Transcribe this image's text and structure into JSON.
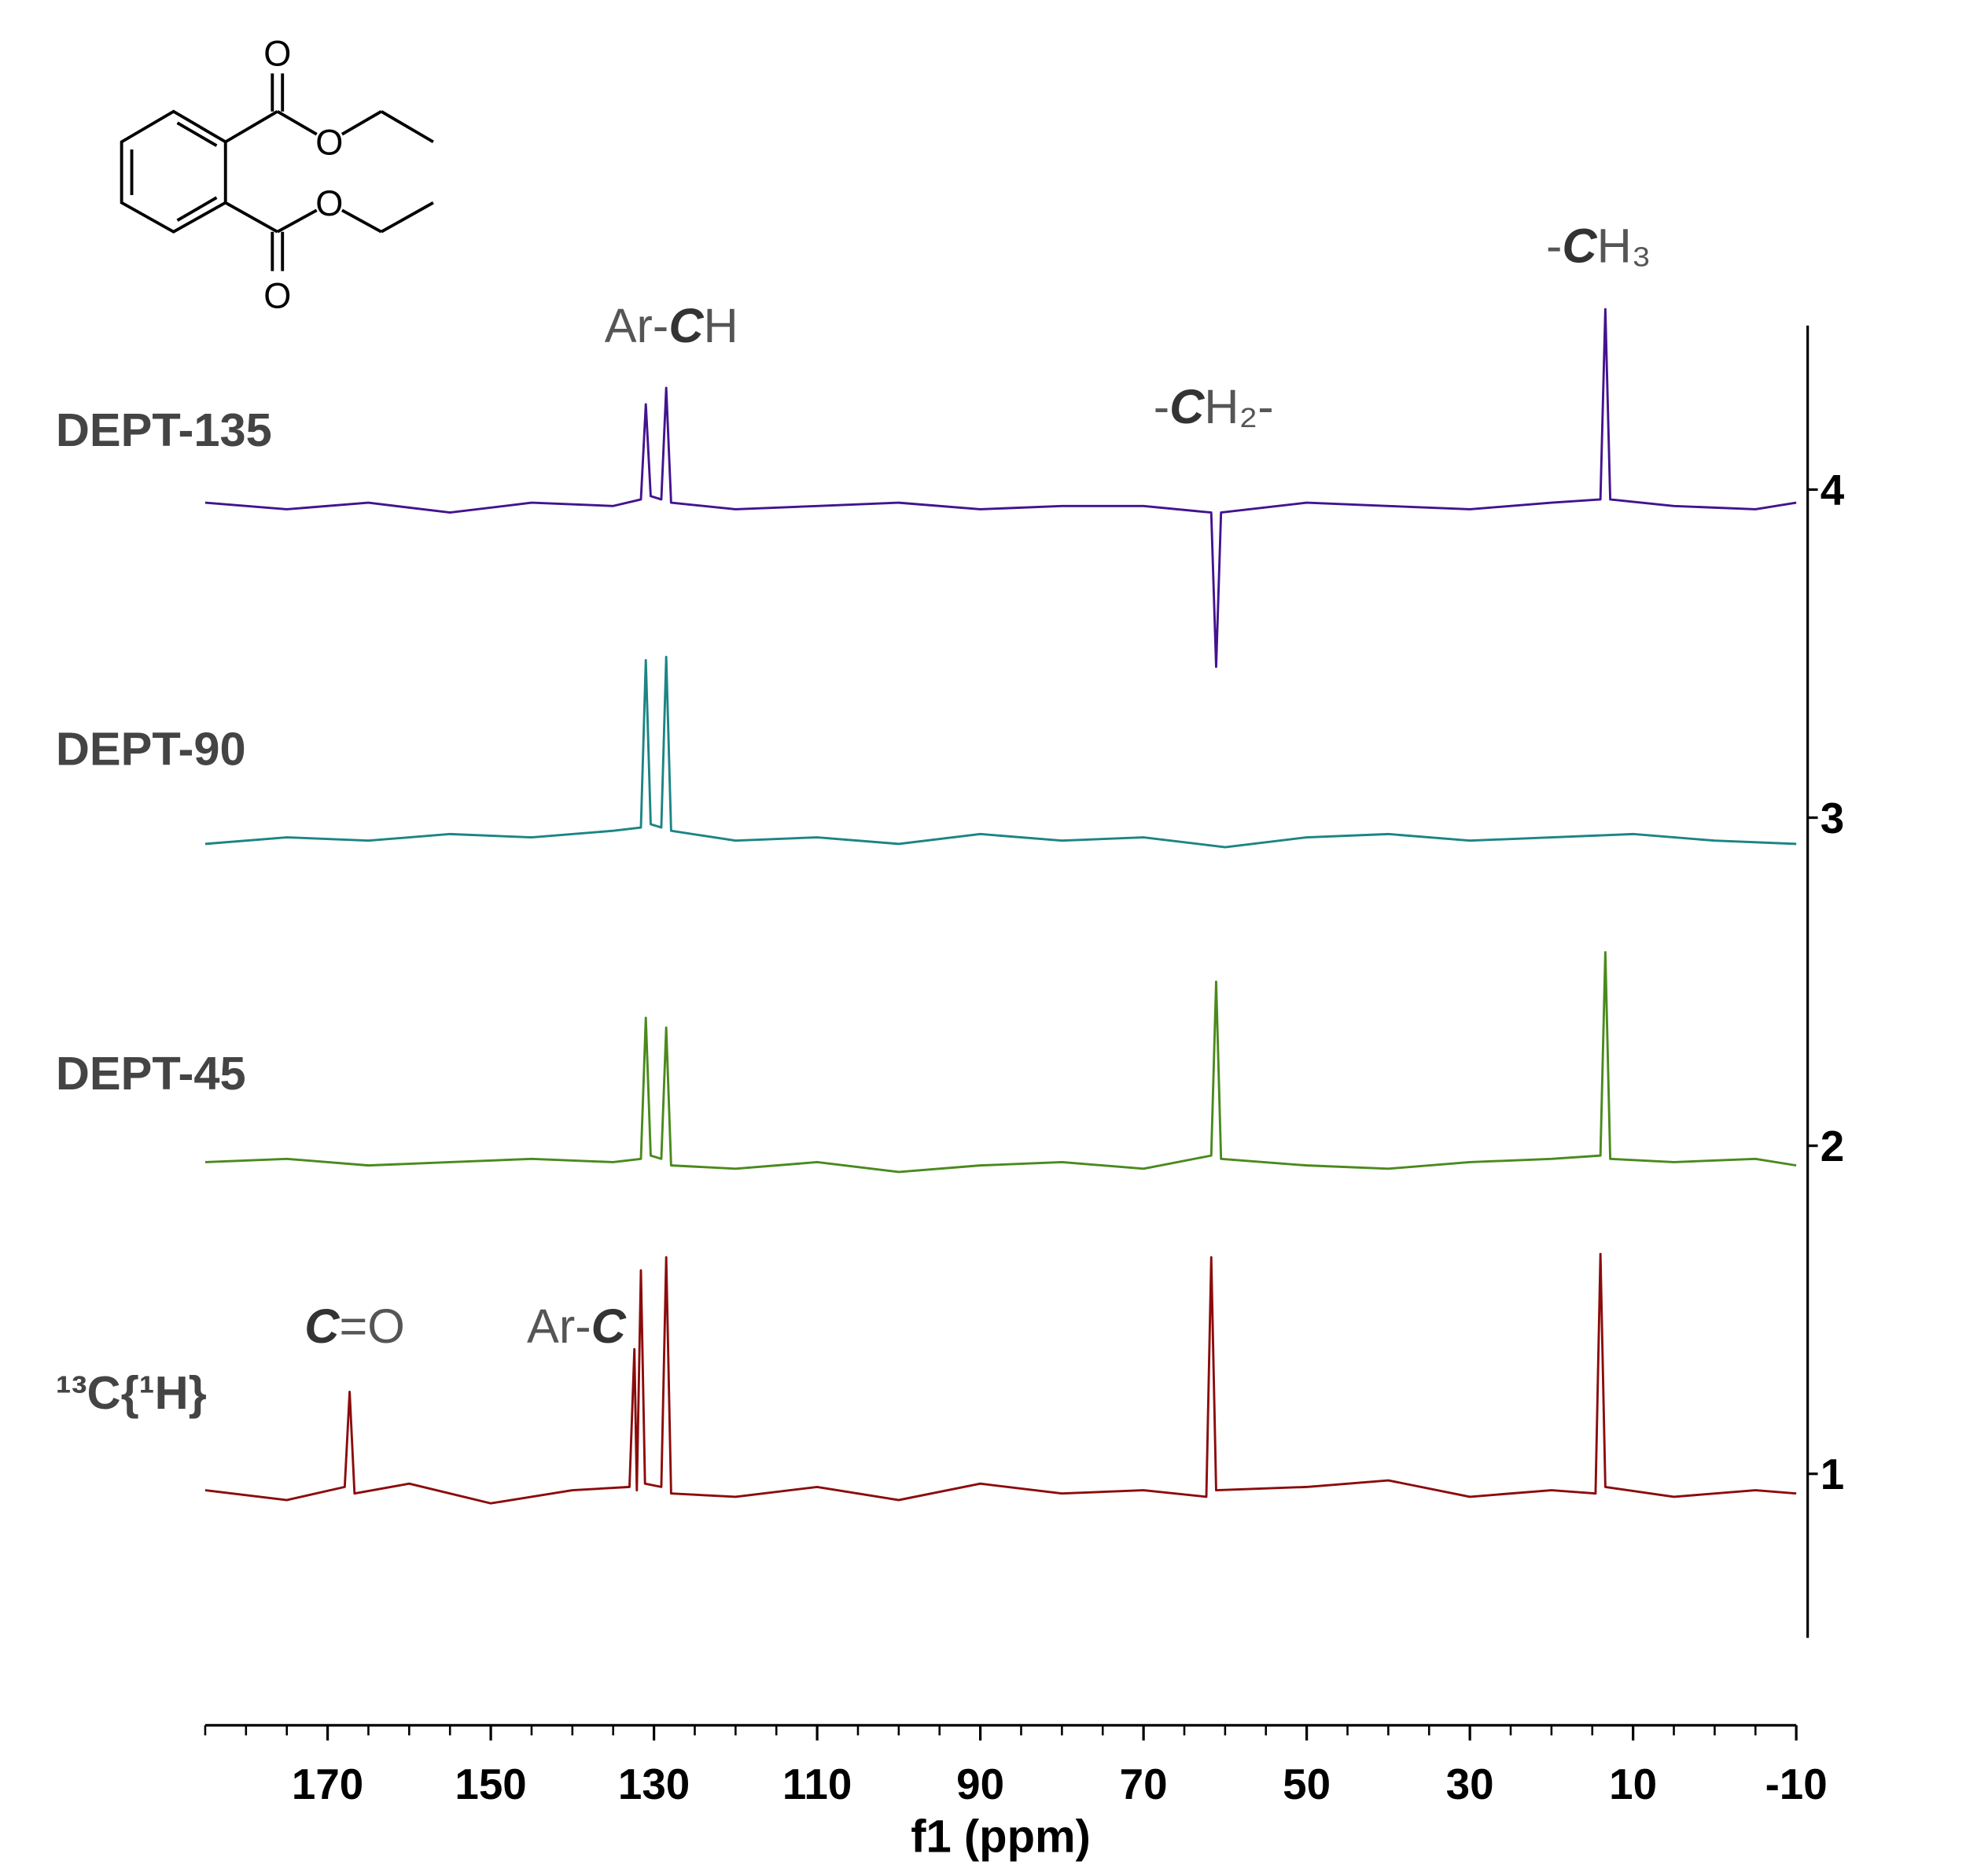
{
  "chart_data": {
    "type": "line",
    "x_label": "f1 (ppm)",
    "xlim": [
      185,
      -10
    ],
    "xticks": [
      170,
      150,
      130,
      110,
      90,
      70,
      50,
      30,
      10,
      -10
    ],
    "xminorticks": [
      185,
      180,
      175,
      170,
      165,
      160,
      155,
      150,
      145,
      140,
      135,
      130,
      125,
      120,
      115,
      110,
      105,
      100,
      95,
      90,
      85,
      80,
      75,
      70,
      65,
      60,
      55,
      50,
      45,
      40,
      35,
      30,
      25,
      20,
      15,
      10,
      5,
      0,
      -5,
      -10
    ],
    "ylim": [
      0.5,
      4.5
    ],
    "yticks": [
      1,
      2,
      3,
      4
    ],
    "series": [
      {
        "name": "DEPT-135",
        "color": "#43138f",
        "x": [
          185,
          175,
          165,
          155,
          145,
          135,
          131.6,
          131.0,
          130.4,
          129.1,
          128.5,
          127.9,
          120,
          110,
          100,
          90,
          80,
          70,
          61.7,
          61.1,
          60.5,
          50,
          40,
          30,
          20,
          14.0,
          13.4,
          12.8,
          5,
          -5,
          -10
        ],
        "values": [
          3.96,
          3.94,
          3.96,
          3.93,
          3.96,
          3.95,
          3.97,
          4.26,
          3.98,
          3.97,
          4.31,
          3.96,
          3.94,
          3.95,
          3.96,
          3.94,
          3.95,
          3.95,
          3.93,
          3.46,
          3.93,
          3.96,
          3.95,
          3.94,
          3.96,
          3.97,
          4.55,
          3.97,
          3.95,
          3.94,
          3.96
        ]
      },
      {
        "name": "DEPT-90",
        "color": "#1b8584",
        "x": [
          185,
          175,
          165,
          155,
          145,
          135,
          131.6,
          131.0,
          130.4,
          129.1,
          128.5,
          127.9,
          120,
          110,
          100,
          90,
          80,
          70,
          60,
          50,
          40,
          30,
          20,
          10,
          0,
          -10
        ],
        "values": [
          2.92,
          2.94,
          2.93,
          2.95,
          2.94,
          2.96,
          2.97,
          3.48,
          2.98,
          2.97,
          3.49,
          2.96,
          2.93,
          2.94,
          2.92,
          2.95,
          2.93,
          2.94,
          2.91,
          2.94,
          2.95,
          2.93,
          2.94,
          2.95,
          2.93,
          2.92
        ]
      },
      {
        "name": "DEPT-45",
        "color": "#4a8a1c",
        "x": [
          185,
          175,
          165,
          155,
          145,
          135,
          131.6,
          131.0,
          130.4,
          129.1,
          128.5,
          127.9,
          120,
          110,
          100,
          90,
          80,
          70,
          61.7,
          61.1,
          60.5,
          50,
          40,
          30,
          20,
          14.0,
          13.4,
          12.8,
          5,
          -5,
          -10
        ],
        "values": [
          1.95,
          1.96,
          1.94,
          1.95,
          1.96,
          1.95,
          1.96,
          2.39,
          1.97,
          1.96,
          2.36,
          1.94,
          1.93,
          1.95,
          1.92,
          1.94,
          1.95,
          1.93,
          1.97,
          2.5,
          1.96,
          1.94,
          1.93,
          1.95,
          1.96,
          1.97,
          2.59,
          1.96,
          1.95,
          1.96,
          1.94
        ]
      },
      {
        "name": "¹³C{¹H}",
        "color": "#8b0c0c",
        "x": [
          185,
          175,
          167.9,
          167.3,
          166.7,
          160,
          150,
          140,
          133.0,
          132.4,
          132.1,
          131.6,
          131.1,
          129.1,
          128.5,
          127.9,
          120,
          110,
          100,
          90,
          80,
          70,
          62.3,
          61.7,
          61.1,
          50,
          40,
          30,
          20,
          14.6,
          14.0,
          13.4,
          5,
          -5,
          -10
        ],
        "values": [
          0.95,
          0.92,
          0.96,
          1.25,
          0.94,
          0.97,
          0.91,
          0.95,
          0.96,
          1.38,
          0.95,
          1.62,
          0.97,
          0.96,
          1.66,
          0.94,
          0.93,
          0.96,
          0.92,
          0.97,
          0.94,
          0.95,
          0.93,
          1.66,
          0.95,
          0.96,
          0.98,
          0.93,
          0.95,
          0.94,
          1.67,
          0.96,
          0.93,
          0.95,
          0.94
        ]
      }
    ],
    "annotations": [
      [
        "Ar-",
        "C",
        "H"
      ],
      [
        "-",
        "C",
        "H₂-"
      ],
      [
        "-",
        "C",
        "H₃"
      ],
      [
        "C",
        "=O"
      ],
      [
        "Ar-",
        "C"
      ]
    ]
  },
  "structure": {
    "atoms": [
      "O",
      "O",
      "O",
      "O"
    ]
  }
}
